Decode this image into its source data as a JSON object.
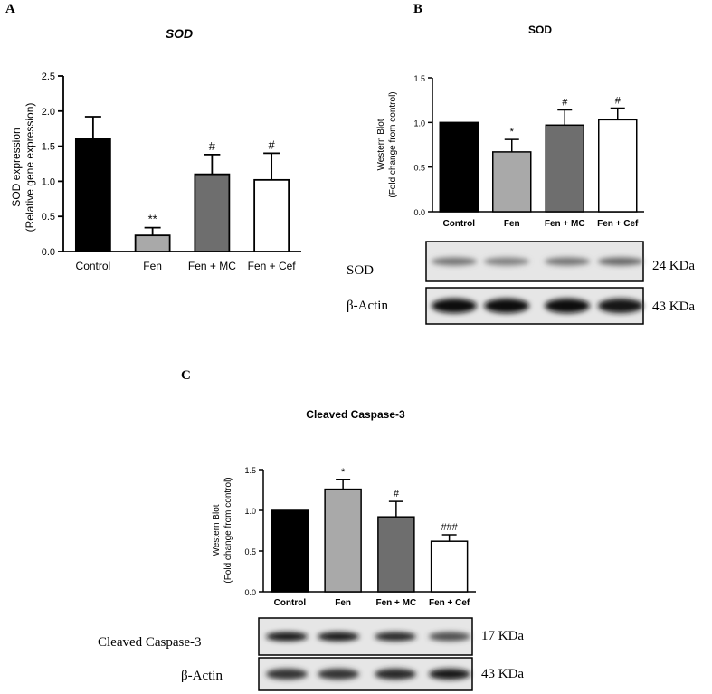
{
  "panels": {
    "a": {
      "letter": "A"
    },
    "b": {
      "letter": "B"
    },
    "c": {
      "letter": "C"
    }
  },
  "chart_data": [
    {
      "type": "bar",
      "title": "SOD",
      "xlabel": "",
      "ylabel_line1": "SOD expression",
      "ylabel_line2": "(Relative gene expression)",
      "ylim": [
        0,
        2.5
      ],
      "yticks": [
        "0.0",
        "0.5",
        "1.0",
        "1.5",
        "2.0",
        "2.5"
      ],
      "categories": [
        "Control",
        "Fen",
        "Fen + MC",
        "Fen + Cef"
      ],
      "values": [
        1.6,
        0.23,
        1.1,
        1.02
      ],
      "errors": [
        0.32,
        0.11,
        0.28,
        0.38
      ],
      "annotations": [
        "",
        "**",
        "#",
        "#"
      ],
      "bar_colors": [
        "#000000",
        "#a9a9a9",
        "#6e6e6e",
        "#ffffff"
      ]
    },
    {
      "type": "bar",
      "title": "SOD",
      "xlabel": "",
      "ylabel_line1": "Western Blot",
      "ylabel_line2": "(Fold change from control)",
      "ylim": [
        0,
        1.5
      ],
      "yticks": [
        "0.0",
        "0.5",
        "1.0",
        "1.5"
      ],
      "categories": [
        "Control",
        "Fen",
        "Fen + MC",
        "Fen + Cef"
      ],
      "values": [
        1.0,
        0.67,
        0.97,
        1.03
      ],
      "errors": [
        0,
        0.14,
        0.17,
        0.13
      ],
      "annotations": [
        "",
        "*",
        "#",
        "#"
      ],
      "bar_colors": [
        "#000000",
        "#a9a9a9",
        "#6e6e6e",
        "#ffffff"
      ]
    },
    {
      "type": "bar",
      "title": "Cleaved Caspase-3",
      "xlabel": "",
      "ylabel_line1": "Western Blot",
      "ylabel_line2": "(Fold change from control)",
      "ylim": [
        0,
        1.5
      ],
      "yticks": [
        "0.0",
        "0.5",
        "1.0",
        "1.5"
      ],
      "categories": [
        "Control",
        "Fen",
        "Fen + MC",
        "Fen + Cef"
      ],
      "values": [
        1.0,
        1.26,
        0.92,
        0.62
      ],
      "errors": [
        0,
        0.12,
        0.19,
        0.08
      ],
      "annotations": [
        "",
        "*",
        "#",
        "###"
      ],
      "bar_colors": [
        "#000000",
        "#a9a9a9",
        "#6e6e6e",
        "#ffffff"
      ]
    }
  ],
  "blots": {
    "b": {
      "rows": [
        {
          "label": "SOD",
          "size": "24 KDa",
          "band_darkness": [
            0.55,
            0.5,
            0.55,
            0.6
          ]
        },
        {
          "label": "β-Actin",
          "size": "43 KDa",
          "band_darkness": [
            0.95,
            0.95,
            0.95,
            0.9
          ]
        }
      ]
    },
    "c": {
      "rows": [
        {
          "label": "Cleaved Caspase-3",
          "size": "17 KDa",
          "band_darkness": [
            0.9,
            0.92,
            0.85,
            0.7
          ]
        },
        {
          "label": "β-Actin",
          "size": "43 KDa",
          "band_darkness": [
            0.8,
            0.8,
            0.85,
            0.9
          ]
        }
      ]
    }
  }
}
